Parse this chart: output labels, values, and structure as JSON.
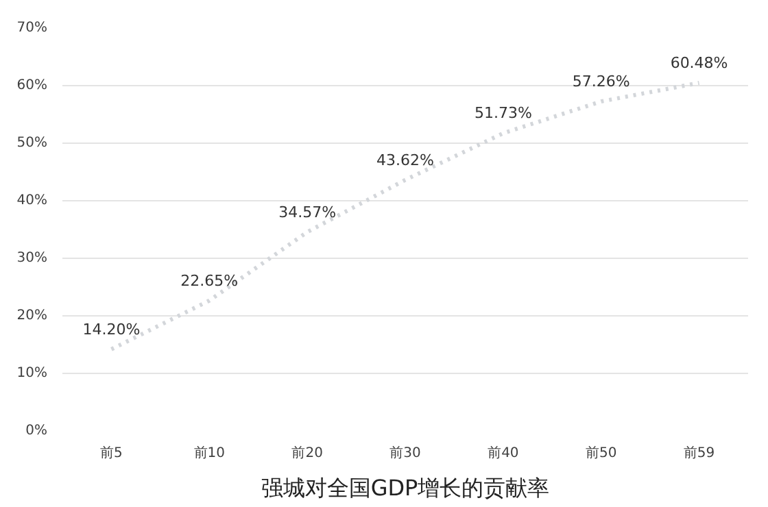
{
  "chart_data": {
    "type": "line",
    "title": "强城对全国GDP增长的贡献率",
    "categories": [
      "前5",
      "前10",
      "前20",
      "前30",
      "前40",
      "前50",
      "前59"
    ],
    "values": [
      14.2,
      22.65,
      34.57,
      43.62,
      51.73,
      57.26,
      60.48
    ],
    "value_labels": [
      "14.20%",
      "22.65%",
      "34.57%",
      "43.62%",
      "51.73%",
      "57.26%",
      "60.48%"
    ],
    "color": "#d3d6da",
    "line_style": "dotted",
    "marker": "none",
    "grid": "y",
    "ylim": [
      0,
      70
    ],
    "yticks": [
      {
        "value": 0,
        "label": "0%"
      },
      {
        "value": 10,
        "label": "10%"
      },
      {
        "value": 20,
        "label": "20%"
      },
      {
        "value": 30,
        "label": "30%"
      },
      {
        "value": 40,
        "label": "40%"
      },
      {
        "value": 50,
        "label": "50%"
      },
      {
        "value": 60,
        "label": "60%"
      },
      {
        "value": 70,
        "label": "70%"
      }
    ]
  }
}
